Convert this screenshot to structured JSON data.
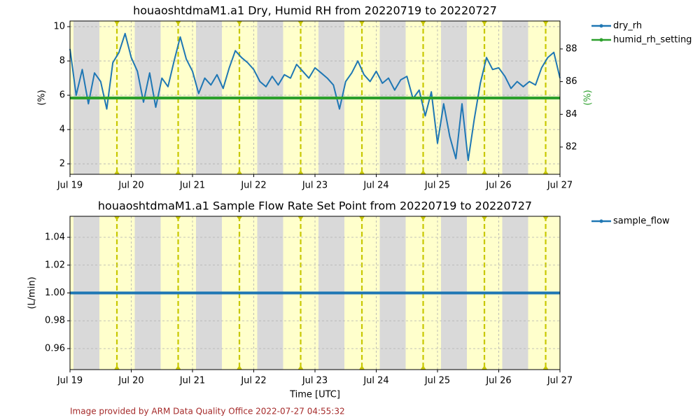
{
  "chart_data": [
    {
      "type": "line",
      "title": "houaoshtdmaM1.a1 Dry, Humid RH from 20220719 to 20220727",
      "ylabel": "(%)",
      "y2label": "(%)",
      "xlim": [
        19,
        27
      ],
      "xticks": [
        {
          "value": 19,
          "label": "Jul 19"
        },
        {
          "value": 20,
          "label": "Jul 20"
        },
        {
          "value": 21,
          "label": "Jul 21"
        },
        {
          "value": 22,
          "label": "Jul 22"
        },
        {
          "value": 23,
          "label": "Jul 23"
        },
        {
          "value": 24,
          "label": "Jul 24"
        },
        {
          "value": 25,
          "label": "Jul 25"
        },
        {
          "value": 26,
          "label": "Jul 26"
        },
        {
          "value": 27,
          "label": "Jul 27"
        }
      ],
      "ylim": [
        1.39,
        10.33
      ],
      "yticks": [
        2,
        4,
        6,
        8,
        10
      ],
      "y2lim": [
        80.33,
        89.71
      ],
      "y2ticks": [
        82,
        84,
        86,
        88
      ],
      "y2color": "#2ca02c",
      "grid": true,
      "series": [
        {
          "name": "dry_rh",
          "color": "#1f77b4",
          "x": [
            19.0,
            19.1,
            19.2,
            19.3,
            19.4,
            19.5,
            19.6,
            19.7,
            19.8,
            19.9,
            20.0,
            20.1,
            20.2,
            20.3,
            20.4,
            20.5,
            20.6,
            20.7,
            20.8,
            20.9,
            21.0,
            21.1,
            21.2,
            21.3,
            21.4,
            21.5,
            21.6,
            21.7,
            21.8,
            21.9,
            22.0,
            22.1,
            22.2,
            22.3,
            22.4,
            22.5,
            22.6,
            22.7,
            22.8,
            22.9,
            23.0,
            23.1,
            23.2,
            23.3,
            23.4,
            23.5,
            23.6,
            23.7,
            23.8,
            23.9,
            24.0,
            24.1,
            24.2,
            24.3,
            24.4,
            24.5,
            24.6,
            24.7,
            24.8,
            24.9,
            25.0,
            25.1,
            25.2,
            25.3,
            25.4,
            25.5,
            25.6,
            25.7,
            25.8,
            25.9,
            26.0,
            26.1,
            26.2,
            26.3,
            26.4,
            26.5,
            26.6,
            26.7,
            26.8,
            26.9,
            27.0
          ],
          "values": [
            8.7,
            6.0,
            7.5,
            5.5,
            7.3,
            6.8,
            5.2,
            7.9,
            8.5,
            9.6,
            8.2,
            7.4,
            5.6,
            7.3,
            5.3,
            7.0,
            6.5,
            8.0,
            9.4,
            8.1,
            7.4,
            6.1,
            7.0,
            6.6,
            7.2,
            6.4,
            7.6,
            8.6,
            8.2,
            7.9,
            7.5,
            6.8,
            6.5,
            7.1,
            6.6,
            7.2,
            7.0,
            7.8,
            7.4,
            7.0,
            7.6,
            7.3,
            7.0,
            6.6,
            5.2,
            6.8,
            7.3,
            8.0,
            7.2,
            6.8,
            7.4,
            6.7,
            7.0,
            6.3,
            6.9,
            7.1,
            5.8,
            6.3,
            4.8,
            6.2,
            3.2,
            5.5,
            3.6,
            2.3,
            5.5,
            2.2,
            4.6,
            6.7,
            8.2,
            7.5,
            7.6,
            7.1,
            6.4,
            6.8,
            6.5,
            6.8,
            6.6,
            7.6,
            8.2,
            8.5,
            7.0
          ]
        },
        {
          "name": "humid_rh_setting",
          "color": "#2ca02c",
          "axis": "y2",
          "x": [
            19,
            27
          ],
          "values": [
            85.0,
            85.0
          ]
        }
      ]
    },
    {
      "type": "line",
      "title": "houaoshtdmaM1.a1 Sample Flow Rate Set Point from 20220719 to 20220727",
      "ylabel": "(L/min)",
      "xlabel": "Time [UTC]",
      "xlim": [
        19,
        27
      ],
      "xticks": [
        {
          "value": 19,
          "label": "Jul 19"
        },
        {
          "value": 20,
          "label": "Jul 20"
        },
        {
          "value": 21,
          "label": "Jul 21"
        },
        {
          "value": 22,
          "label": "Jul 22"
        },
        {
          "value": 23,
          "label": "Jul 23"
        },
        {
          "value": 24,
          "label": "Jul 24"
        },
        {
          "value": 25,
          "label": "Jul 25"
        },
        {
          "value": 26,
          "label": "Jul 26"
        },
        {
          "value": 27,
          "label": "Jul 27"
        }
      ],
      "ylim": [
        0.9449,
        1.0551
      ],
      "yticks": [
        0.96,
        0.98,
        {
          "value": 1.0,
          "label": "1.00"
        },
        1.02,
        1.04
      ],
      "grid": true,
      "series": [
        {
          "name": "sample_flow",
          "color": "#1f77b4",
          "x": [
            19,
            27
          ],
          "values": [
            1.0,
            1.0
          ]
        }
      ]
    }
  ],
  "footer": "Image provided by ARM Data Quality Office 2022-07-27 04:55:32"
}
